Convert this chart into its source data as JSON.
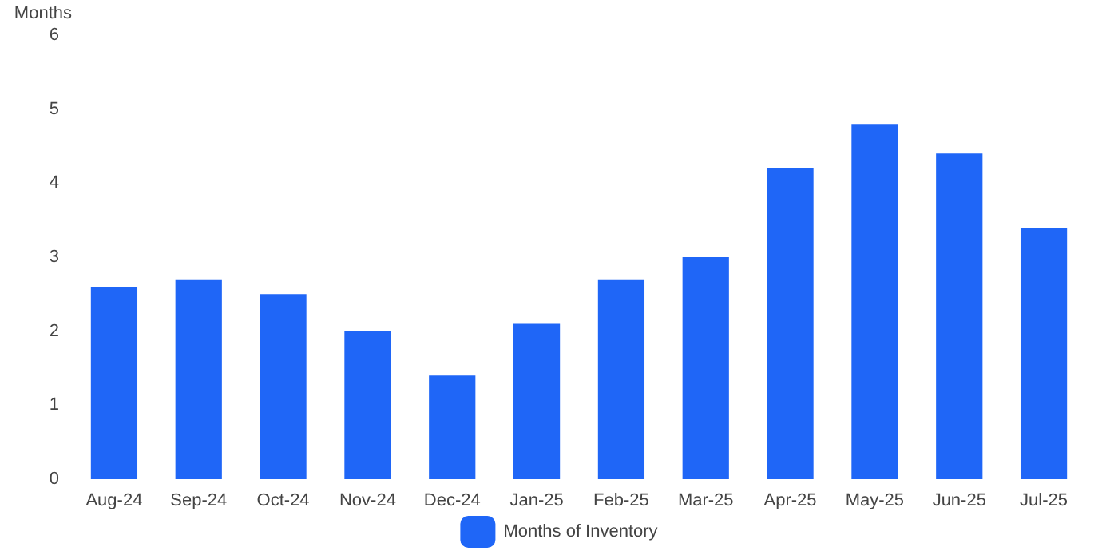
{
  "chart_data": {
    "type": "bar",
    "ylabel": "Months",
    "categories": [
      "Aug-24",
      "Sep-24",
      "Oct-24",
      "Nov-24",
      "Dec-24",
      "Jan-25",
      "Feb-25",
      "Mar-25",
      "Apr-25",
      "May-25",
      "Jun-25",
      "Jul-25"
    ],
    "series": [
      {
        "name": "Months of Inventory",
        "color": "#1f66f7",
        "values": [
          2.6,
          2.7,
          2.5,
          2.0,
          1.4,
          2.1,
          2.7,
          3.0,
          4.2,
          4.8,
          4.4,
          3.4
        ]
      }
    ],
    "ylim": [
      0,
      6
    ],
    "yticks": [
      0,
      1,
      2,
      3,
      4,
      5,
      6
    ],
    "grid": false,
    "legend": "bottom"
  }
}
